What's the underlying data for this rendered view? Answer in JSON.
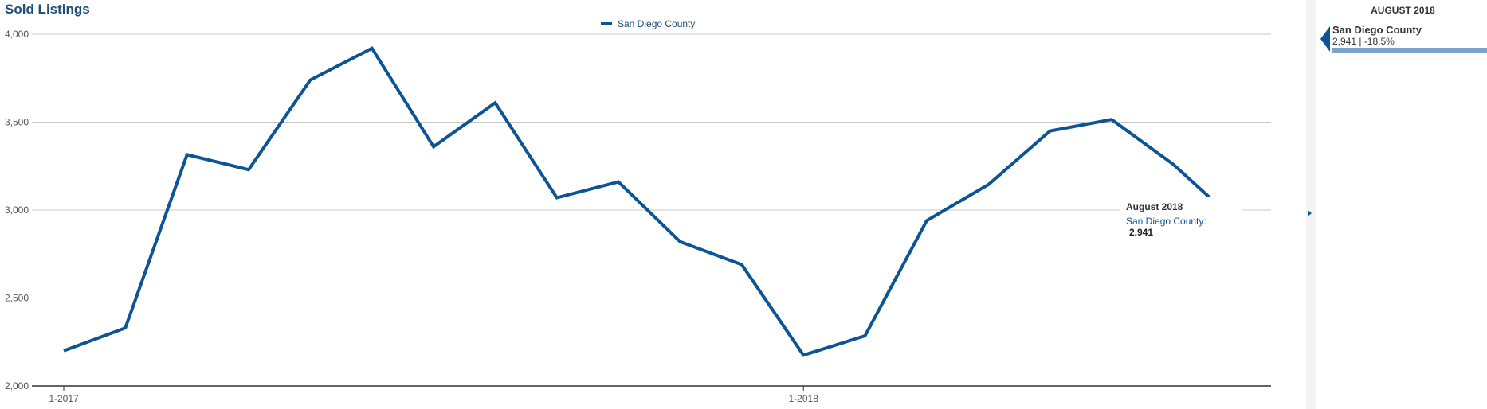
{
  "chart_data": {
    "type": "line",
    "title": "Sold Listings",
    "x": [
      "1-2017",
      "2-2017",
      "3-2017",
      "4-2017",
      "5-2017",
      "6-2017",
      "7-2017",
      "8-2017",
      "9-2017",
      "10-2017",
      "11-2017",
      "12-2017",
      "1-2018",
      "2-2018",
      "3-2018",
      "4-2018",
      "5-2018",
      "6-2018",
      "7-2018",
      "8-2018"
    ],
    "x_tick_labels": [
      "1-2017",
      "1-2018"
    ],
    "series": [
      {
        "name": "San Diego County",
        "color": "#0d5494",
        "values": [
          2200,
          2330,
          3315,
          3230,
          3740,
          3920,
          3360,
          3610,
          3070,
          3160,
          2820,
          2690,
          2175,
          2285,
          2940,
          3145,
          3450,
          3515,
          3260,
          2941
        ]
      }
    ],
    "y_ticks": [
      "2,000",
      "2,500",
      "3,000",
      "3,500",
      "4,000"
    ],
    "ylim": [
      2000,
      4000
    ],
    "grid": true,
    "legend": "top-center"
  },
  "tooltip": {
    "title": "August 2018",
    "series_label": "San Diego County:",
    "value": "2,941"
  },
  "side_panel": {
    "date": "AUGUST 2018",
    "name": "San Diego County",
    "stats": "2,941 | -18.5%"
  }
}
